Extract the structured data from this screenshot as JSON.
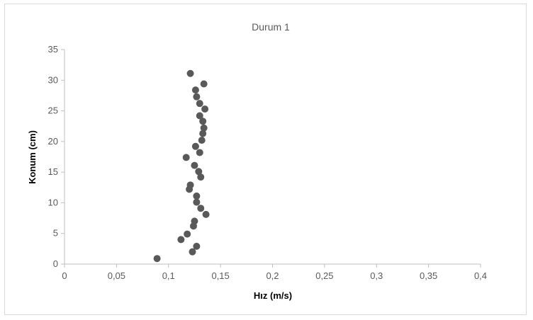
{
  "chart_data": {
    "type": "scatter",
    "title": "Durum 1",
    "xlabel": "Hız (m/s)",
    "ylabel": "Konum (cm)",
    "xlim": [
      0,
      0.4
    ],
    "ylim": [
      0,
      35
    ],
    "xticks": [
      0,
      0.05,
      0.1,
      0.15,
      0.2,
      0.25,
      0.3,
      0.35,
      0.4
    ],
    "xtick_labels": [
      "0",
      "0,05",
      "0,1",
      "0,15",
      "0,2",
      "0,25",
      "0,3",
      "0,35",
      "0,4"
    ],
    "yticks": [
      0,
      5,
      10,
      15,
      20,
      25,
      30,
      35
    ],
    "ytick_labels": [
      "0",
      "5",
      "10",
      "15",
      "20",
      "25",
      "30",
      "35"
    ],
    "grid": false,
    "legend": "none",
    "marker_color": "#595959",
    "series": [
      {
        "points": [
          [
            0.089,
            0.9
          ],
          [
            0.123,
            2.0
          ],
          [
            0.127,
            2.9
          ],
          [
            0.112,
            4.0
          ],
          [
            0.118,
            4.9
          ],
          [
            0.124,
            6.2
          ],
          [
            0.125,
            7.0
          ],
          [
            0.136,
            8.1
          ],
          [
            0.131,
            9.1
          ],
          [
            0.127,
            10.1
          ],
          [
            0.127,
            11.1
          ],
          [
            0.12,
            12.2
          ],
          [
            0.121,
            12.9
          ],
          [
            0.131,
            14.2
          ],
          [
            0.129,
            15.1
          ],
          [
            0.125,
            16.1
          ],
          [
            0.117,
            17.4
          ],
          [
            0.13,
            18.2
          ],
          [
            0.126,
            19.2
          ],
          [
            0.132,
            20.2
          ],
          [
            0.133,
            21.3
          ],
          [
            0.134,
            22.2
          ],
          [
            0.133,
            23.3
          ],
          [
            0.13,
            24.2
          ],
          [
            0.135,
            25.3
          ],
          [
            0.13,
            26.2
          ],
          [
            0.127,
            27.3
          ],
          [
            0.126,
            28.4
          ],
          [
            0.134,
            29.4
          ],
          [
            0.121,
            31.1
          ]
        ]
      }
    ]
  }
}
